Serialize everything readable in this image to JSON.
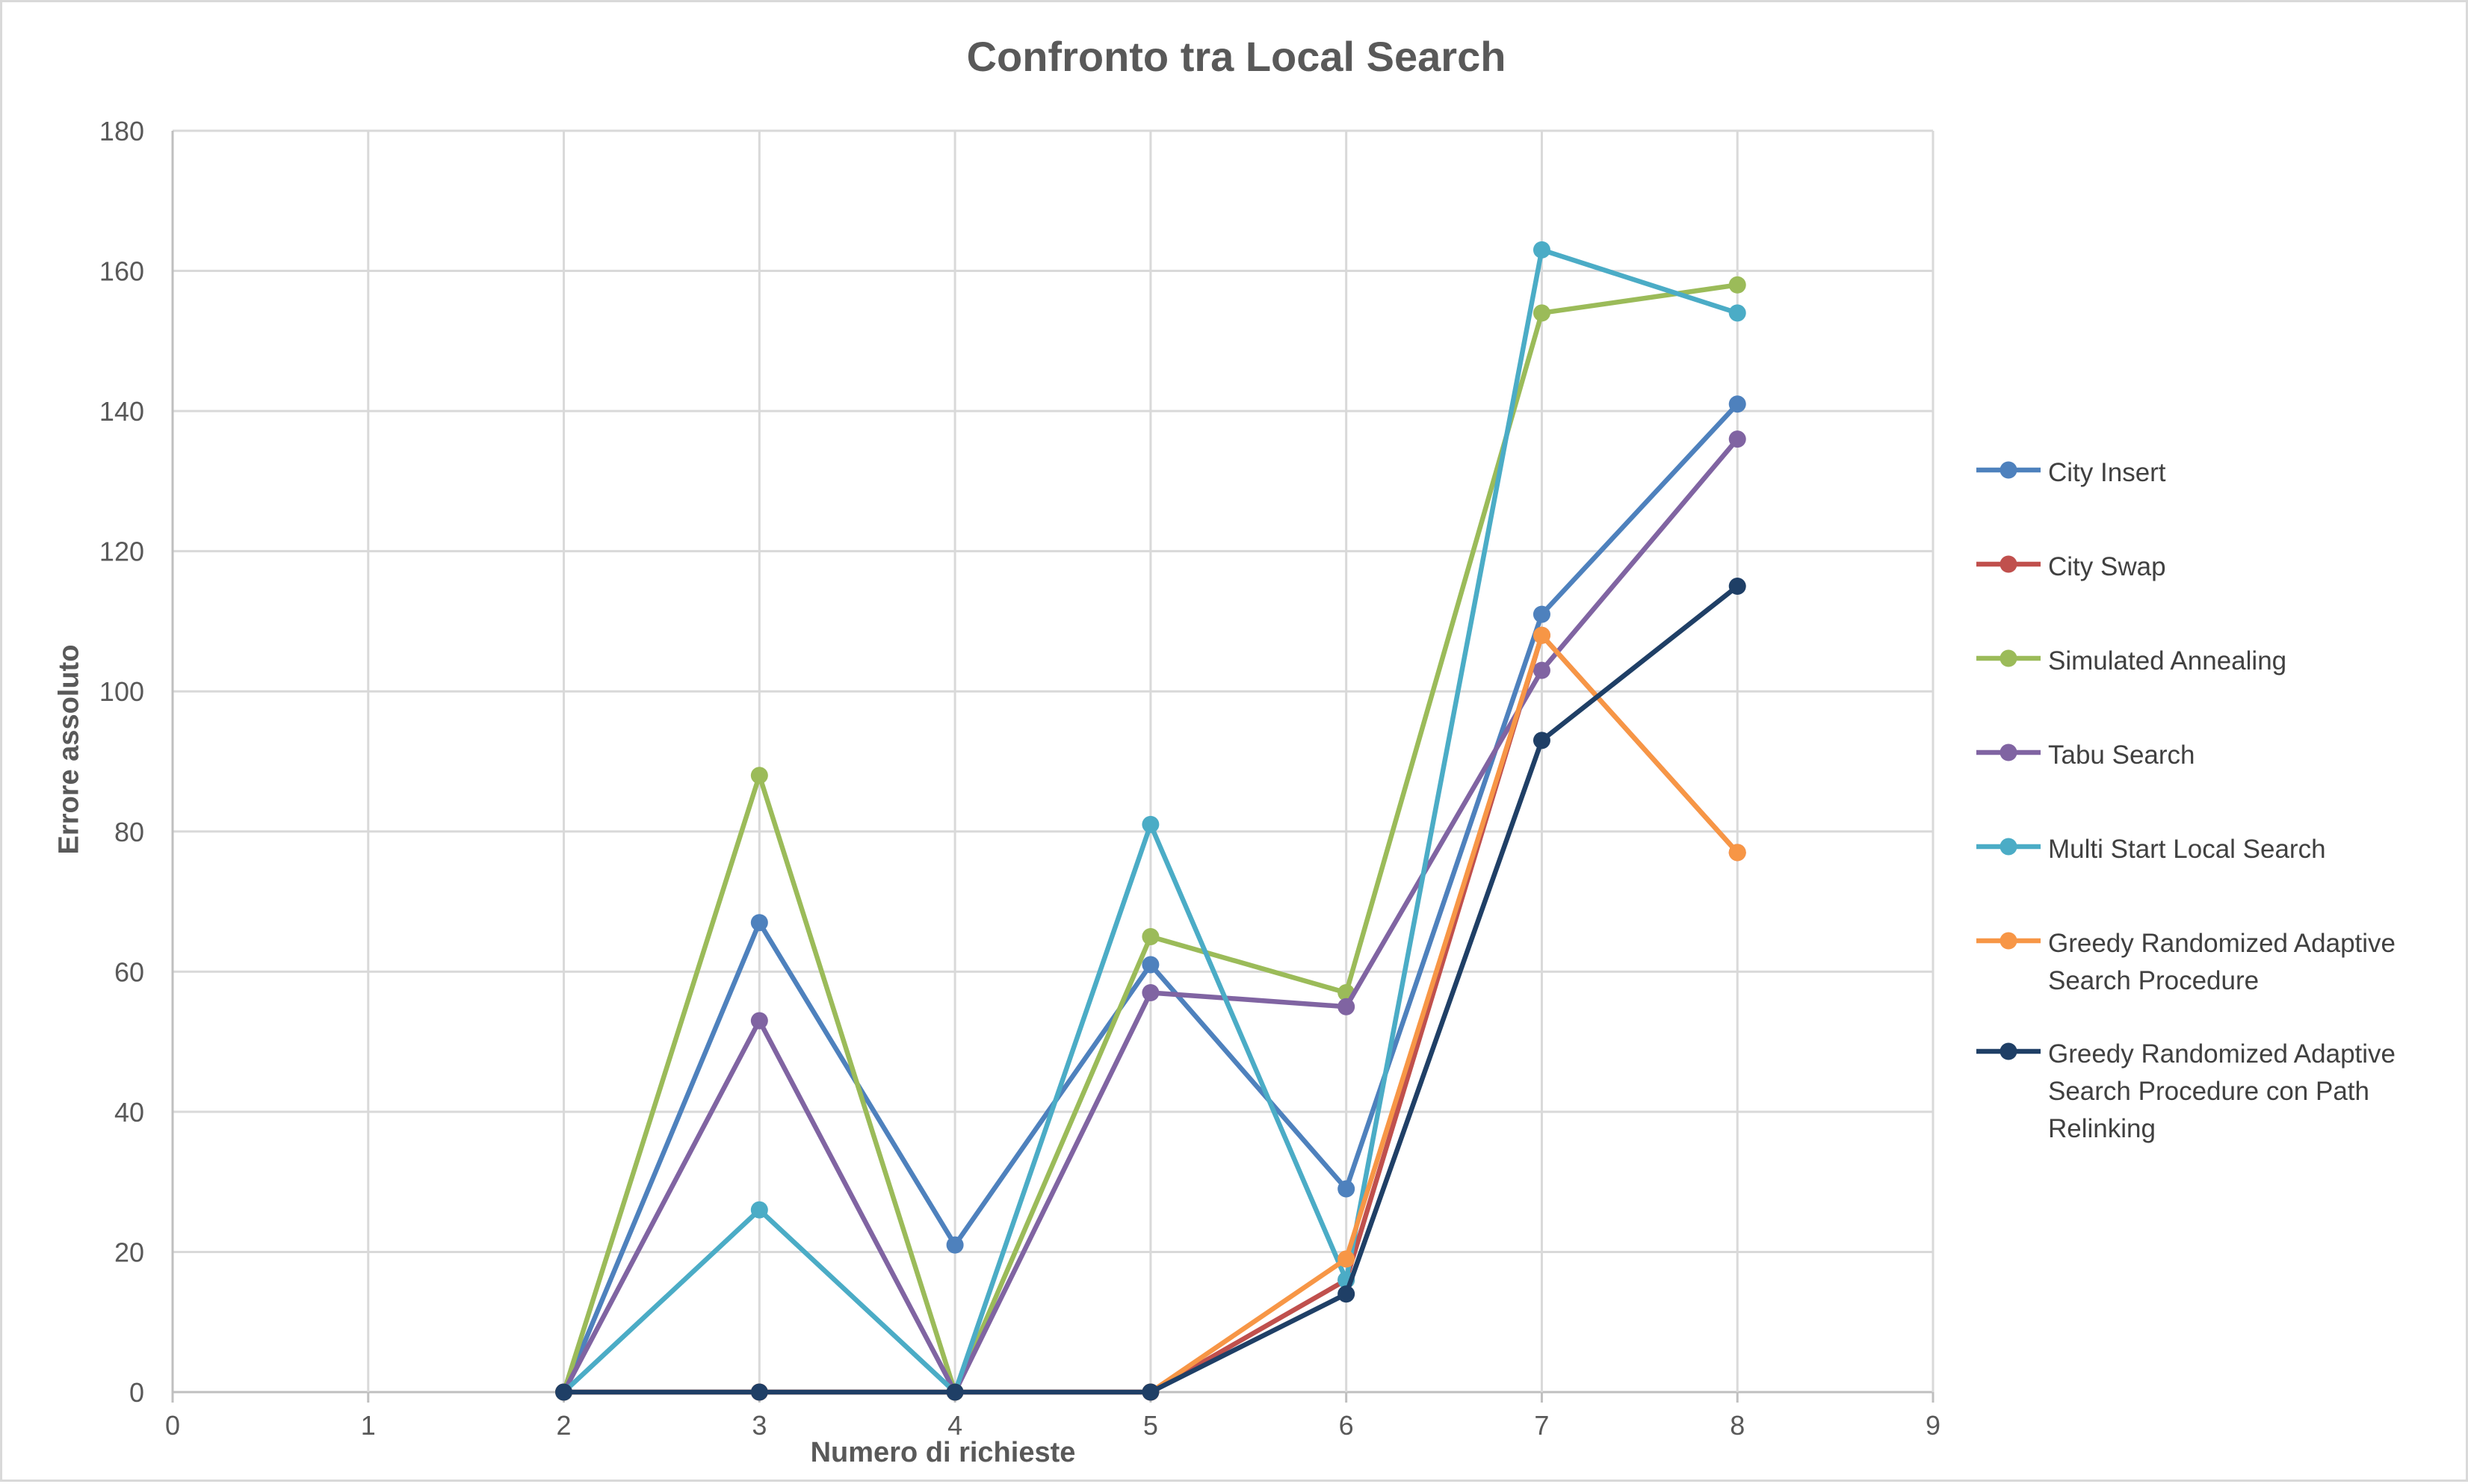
{
  "chart_data": {
    "type": "line",
    "title": "Confronto tra Local Search",
    "xlabel": "Numero di richieste",
    "ylabel": "Errore assoluto",
    "xlim": [
      0,
      9
    ],
    "ylim": [
      0,
      180
    ],
    "x_ticks": [
      0,
      1,
      2,
      3,
      4,
      5,
      6,
      7,
      8,
      9
    ],
    "y_ticks": [
      0,
      20,
      40,
      60,
      80,
      100,
      120,
      140,
      160,
      180
    ],
    "grid": true,
    "legend_position": "right",
    "x": [
      2,
      3,
      4,
      5,
      6,
      7,
      8
    ],
    "series": [
      {
        "name": "City Insert",
        "color": "#4e81bd",
        "values": [
          0,
          67,
          21,
          61,
          29,
          111,
          141
        ]
      },
      {
        "name": "City Swap",
        "color": "#c0504d",
        "values": [
          0,
          0,
          0,
          0,
          16,
          108,
          77
        ]
      },
      {
        "name": "Simulated Annealing",
        "color": "#9bbb59",
        "values": [
          0,
          88,
          0,
          65,
          57,
          154,
          158
        ]
      },
      {
        "name": "Tabu Search",
        "color": "#8064a2",
        "values": [
          0,
          53,
          0,
          57,
          55,
          103,
          136
        ]
      },
      {
        "name": "Multi Start Local Search",
        "color": "#4bacc6",
        "values": [
          0,
          26,
          0,
          81,
          16,
          163,
          154
        ]
      },
      {
        "name": "Greedy Randomized Adaptive Search Procedure",
        "color": "#f79646",
        "values": [
          0,
          0,
          0,
          0,
          19,
          108,
          77
        ]
      },
      {
        "name": "Greedy Randomized Adaptive Search Procedure con Path Relinking",
        "color": "#1f3f66",
        "values": [
          0,
          0,
          0,
          0,
          14,
          93,
          115
        ]
      }
    ]
  },
  "legend_lines": [
    [
      "City Insert"
    ],
    [
      "City Swap"
    ],
    [
      "Simulated Annealing"
    ],
    [
      "Tabu Search"
    ],
    [
      "Multi Start Local Search"
    ],
    [
      "Greedy Randomized Adaptive",
      "Search Procedure"
    ],
    [
      "Greedy Randomized Adaptive",
      "Search Procedure con Path",
      "Relinking"
    ]
  ]
}
